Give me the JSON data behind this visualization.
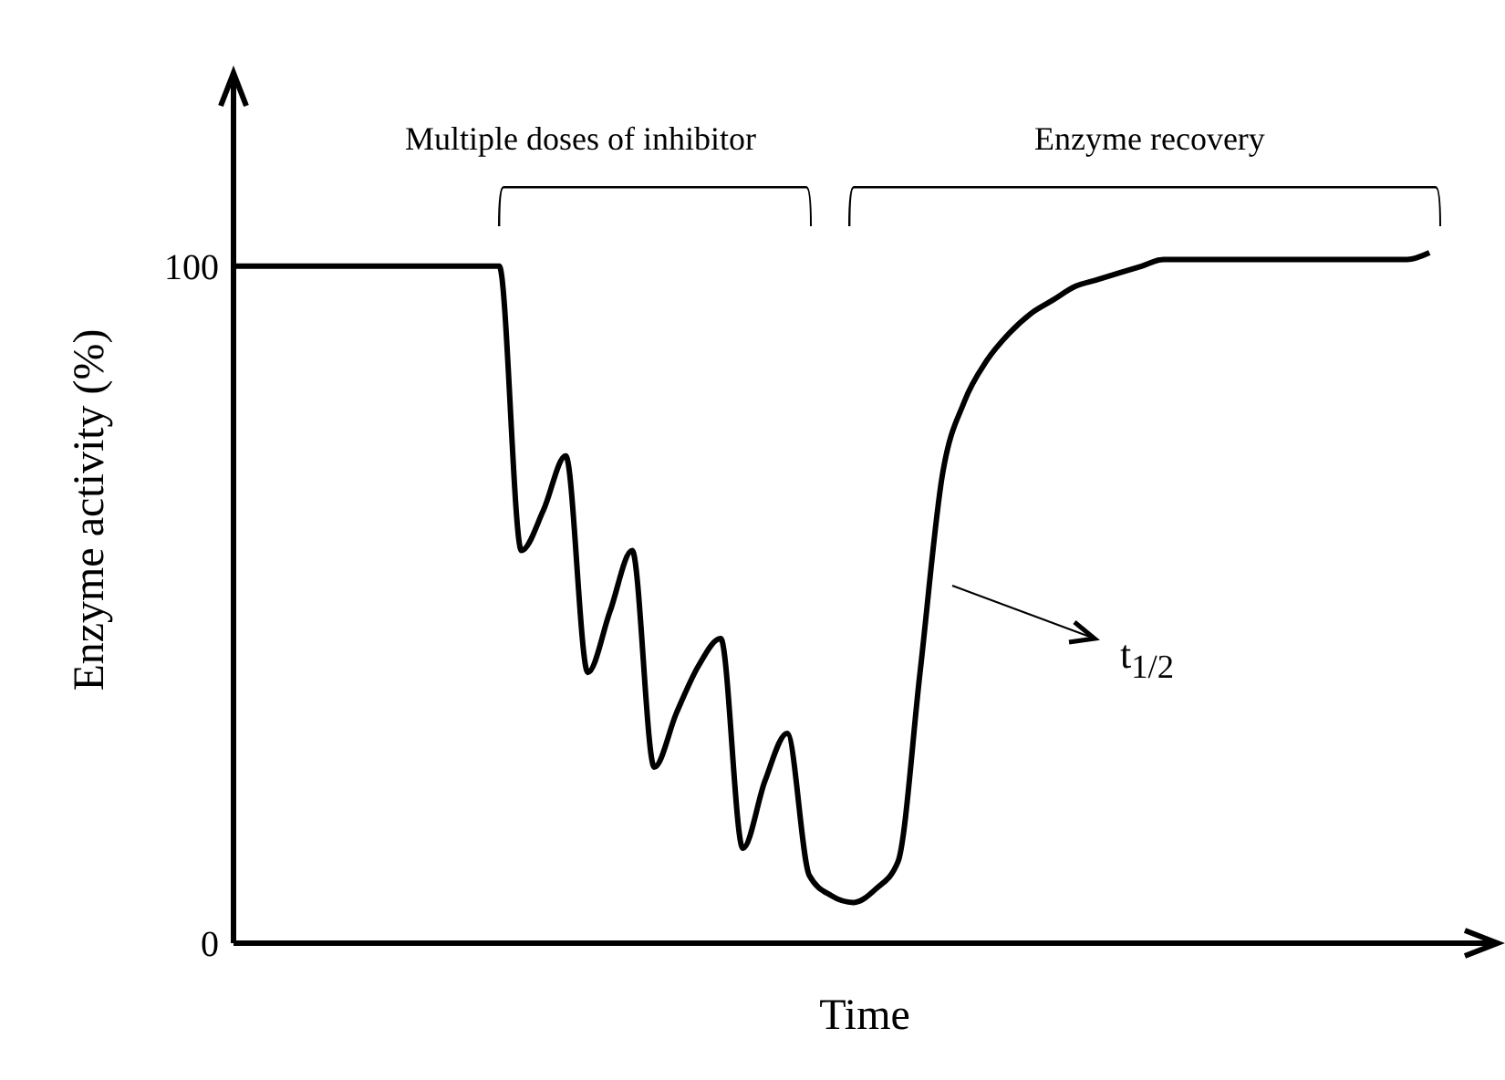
{
  "chart_data": {
    "type": "line",
    "xlabel": "Time",
    "ylabel": "Enzyme activity (%)",
    "annotations": [
      "Multiple doses of inhibitor",
      "Enzyme recovery",
      "t$_{1/2}$"
    ],
    "categories": [
      null,
      null,
      null,
      null,
      null,
      null,
      null,
      null,
      null,
      null,
      null,
      null,
      null,
      null,
      null,
      null,
      null,
      null,
      null,
      null,
      null,
      null,
      null,
      null,
      null,
      null,
      null,
      null,
      null,
      null,
      null,
      null,
      null,
      null,
      null,
      null,
      null,
      null,
      null,
      null,
      null,
      null,
      null,
      null,
      null,
      null,
      null,
      null,
      null,
      null,
      null,
      null,
      null,
      null,
      null,
      null,
      null,
      null
    ],
    "series": [
      {
        "color": "#000000",
        "values": [
          100,
          100,
          100,
          100,
          100,
          100,
          100,
          100,
          100,
          100,
          100,
          100,
          100,
          58,
          64,
          72,
          40,
          49,
          58,
          26,
          34,
          41,
          45,
          14,
          24,
          31,
          10,
          7,
          6,
          8,
          12,
          40,
          69,
          80,
          86,
          90,
          93,
          95,
          97,
          98,
          99,
          100,
          101,
          101,
          101,
          101,
          101,
          101,
          101,
          101,
          101,
          101,
          101,
          101,
          102,
          null,
          null,
          null
        ]
      }
    ],
    "ylim": [
      0,
      128
    ],
    "yticks": [
      0,
      100
    ]
  }
}
